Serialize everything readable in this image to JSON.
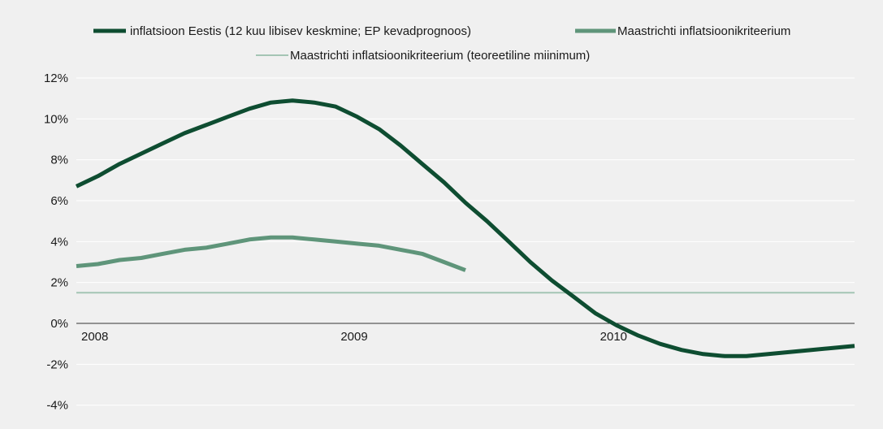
{
  "chart_data": {
    "type": "line",
    "title": "",
    "xlabel": "",
    "ylabel": "",
    "x_ticks": [
      "2008",
      "2009",
      "2010"
    ],
    "xlim": [
      2008.0,
      2011.0
    ],
    "y_ticks": [
      "12%",
      "10%",
      "8%",
      "6%",
      "4%",
      "2%",
      "0%",
      "-2%",
      "-4%"
    ],
    "ylim": [
      -5,
      12
    ],
    "grid": "horizontal",
    "legend_position": "top",
    "series": [
      {
        "name": "inflatsioon Eestis (12 kuu libisev keskmine; EP kevadprognoos)",
        "color": "#0e4d31",
        "x": [
          2008.0,
          2008.083,
          2008.167,
          2008.25,
          2008.333,
          2008.417,
          2008.5,
          2008.583,
          2008.667,
          2008.75,
          2008.833,
          2008.917,
          2009.0,
          2009.083,
          2009.167,
          2009.25,
          2009.333,
          2009.417,
          2009.5,
          2009.583,
          2009.667,
          2009.75,
          2009.833,
          2009.917,
          2010.0,
          2010.083,
          2010.167,
          2010.25,
          2010.333,
          2010.417,
          2010.5,
          2010.583,
          2010.667,
          2010.75,
          2010.833,
          2010.917,
          2011.0
        ],
        "values": [
          6.7,
          7.2,
          7.8,
          8.3,
          8.8,
          9.3,
          9.7,
          10.1,
          10.5,
          10.8,
          10.9,
          10.8,
          10.6,
          10.1,
          9.5,
          8.7,
          7.8,
          6.9,
          5.9,
          5.0,
          4.0,
          3.0,
          2.1,
          1.3,
          0.5,
          -0.1,
          -0.6,
          -1.0,
          -1.3,
          -1.5,
          -1.6,
          -1.6,
          -1.5,
          -1.4,
          -1.3,
          -1.2,
          -1.1
        ]
      },
      {
        "name": "Maastrichti inflatsioonikriteerium",
        "color": "#5f957a",
        "x": [
          2008.0,
          2008.083,
          2008.167,
          2008.25,
          2008.333,
          2008.417,
          2008.5,
          2008.583,
          2008.667,
          2008.75,
          2008.833,
          2008.917,
          2009.0,
          2009.083,
          2009.167,
          2009.25,
          2009.333,
          2009.417,
          2009.5
        ],
        "values": [
          2.8,
          2.9,
          3.1,
          3.2,
          3.4,
          3.6,
          3.7,
          3.9,
          4.1,
          4.2,
          4.2,
          4.1,
          4.0,
          3.9,
          3.8,
          3.6,
          3.4,
          3.0,
          2.6
        ]
      },
      {
        "name": "Maastrichti inflatsioonikriteerium (teoreetiline miinimum)",
        "color": "#a4c5b4",
        "x": [
          2008.0,
          2011.0
        ],
        "values": [
          1.5,
          1.5
        ]
      }
    ]
  }
}
